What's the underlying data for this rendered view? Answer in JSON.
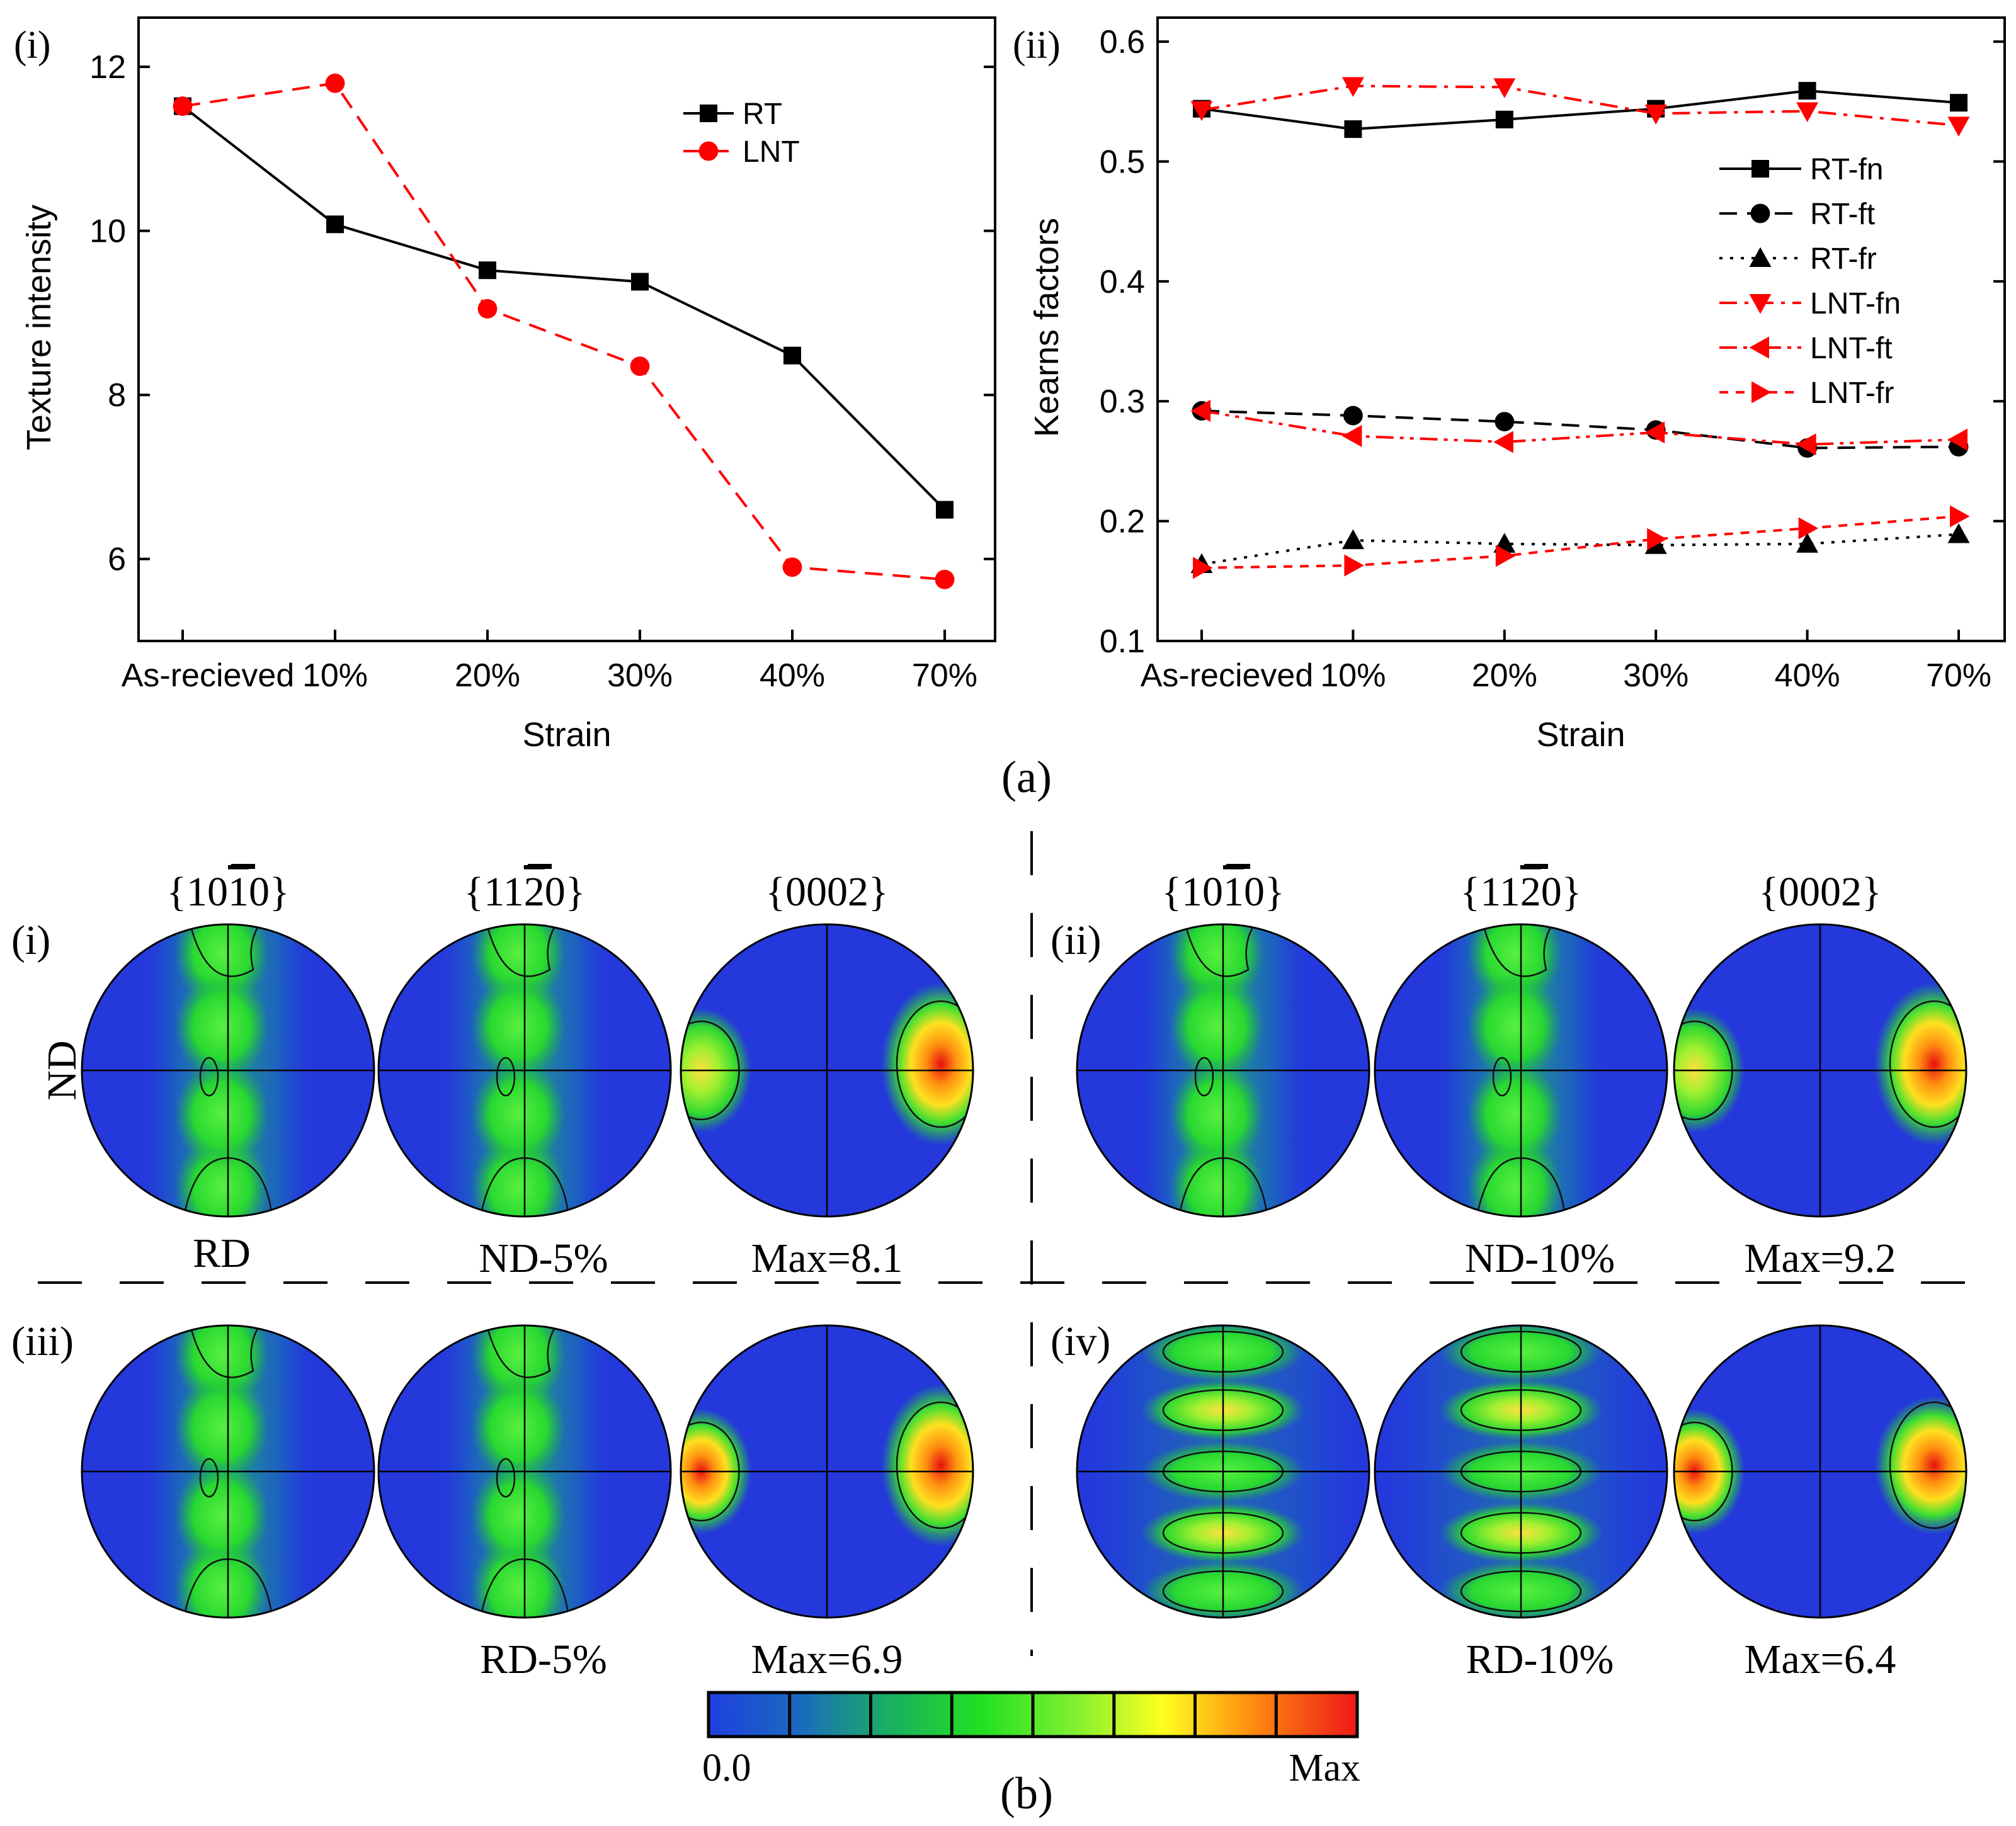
{
  "chart_data": [
    {
      "type": "line",
      "panel_label": "(i)",
      "xlabel": "Strain",
      "ylabel": "Texture intensity",
      "categories": [
        "As-recieved",
        "10%",
        "20%",
        "30%",
        "40%",
        "70%"
      ],
      "ylim": [
        5,
        12.6
      ],
      "yticks": [
        "6",
        "8",
        "10",
        "12"
      ],
      "legend": "top-right",
      "series": [
        {
          "name": "RT",
          "color": "#000000",
          "marker": "square",
          "dash": "solid",
          "values": [
            11.52,
            10.08,
            9.52,
            9.38,
            8.48,
            6.6
          ]
        },
        {
          "name": "LNT",
          "color": "#ff0000",
          "marker": "circle",
          "dash": "dash",
          "values": [
            11.52,
            11.8,
            9.05,
            8.35,
            5.9,
            5.75
          ]
        }
      ]
    },
    {
      "type": "line",
      "panel_label": "(ii)",
      "xlabel": "Strain",
      "ylabel": "Kearns factors",
      "categories": [
        "As-recieved",
        "10%",
        "20%",
        "30%",
        "40%",
        "70%"
      ],
      "ylim": [
        0.1,
        0.62
      ],
      "yticks": [
        "0.1",
        "0.2",
        "0.3",
        "0.4",
        "0.5",
        "0.6"
      ],
      "legend": "right",
      "series": [
        {
          "name": "RT-fn",
          "color": "#000000",
          "marker": "square",
          "dash": "solid",
          "values": [
            0.544,
            0.527,
            0.535,
            0.544,
            0.559,
            0.549
          ]
        },
        {
          "name": "RT-ft",
          "color": "#000000",
          "marker": "circle",
          "dash": "dash",
          "values": [
            0.292,
            0.288,
            0.283,
            0.276,
            0.261,
            0.262
          ]
        },
        {
          "name": "RT-fr",
          "color": "#000000",
          "marker": "triangle-up",
          "dash": "dot",
          "values": [
            0.164,
            0.184,
            0.181,
            0.18,
            0.181,
            0.189
          ]
        },
        {
          "name": "LNT-fn",
          "color": "#ff0000",
          "marker": "triangle-down",
          "dash": "dashdot",
          "values": [
            0.543,
            0.563,
            0.562,
            0.54,
            0.542,
            0.53
          ]
        },
        {
          "name": "LNT-ft",
          "color": "#ff0000",
          "marker": "triangle-left",
          "dash": "dashdotdot",
          "values": [
            0.292,
            0.271,
            0.266,
            0.274,
            0.264,
            0.268
          ]
        },
        {
          "name": "LNT-fr",
          "color": "#ff0000",
          "marker": "triangle-right",
          "dash": "shortdash",
          "values": [
            0.161,
            0.163,
            0.171,
            0.185,
            0.194,
            0.204
          ]
        }
      ]
    }
  ],
  "caption_a": "(a)",
  "caption_b": "(b)",
  "pole_figures": {
    "planes": [
      {
        "pre": "{10",
        "bar": "1",
        "post": "0}"
      },
      {
        "pre": "{11",
        "bar": "2",
        "post": "0}"
      },
      {
        "pre": "{0002}",
        "bar": "",
        "post": ""
      }
    ],
    "panels": [
      {
        "label": "(i)",
        "axis_top": "ND",
        "axis_bottom": "RD",
        "condition": "ND-5%",
        "max": "Max=8.1",
        "pattern": "nd"
      },
      {
        "label": "(ii)",
        "axis_top": "",
        "axis_bottom": "",
        "condition": "ND-10%",
        "max": "Max=9.2",
        "pattern": "nd"
      },
      {
        "label": "(iii)",
        "axis_top": "",
        "axis_bottom": "",
        "condition": "RD-5%",
        "max": "Max=6.9",
        "pattern": "rd"
      },
      {
        "label": "(iv)",
        "axis_top": "",
        "axis_bottom": "",
        "condition": "RD-10%",
        "max": "Max=6.4",
        "pattern": "rd10"
      }
    ],
    "colorbar": {
      "min_label": "0.0",
      "max_label": "Max",
      "colors": [
        "#1f3fe0",
        "#1aa070",
        "#22d822",
        "#4cec3a",
        "#c8f020",
        "#ffe010",
        "#ff8a10",
        "#f03020"
      ]
    }
  },
  "colors": {
    "rt": "#000000",
    "lnt": "#ff0000",
    "background": "#2233dd"
  }
}
